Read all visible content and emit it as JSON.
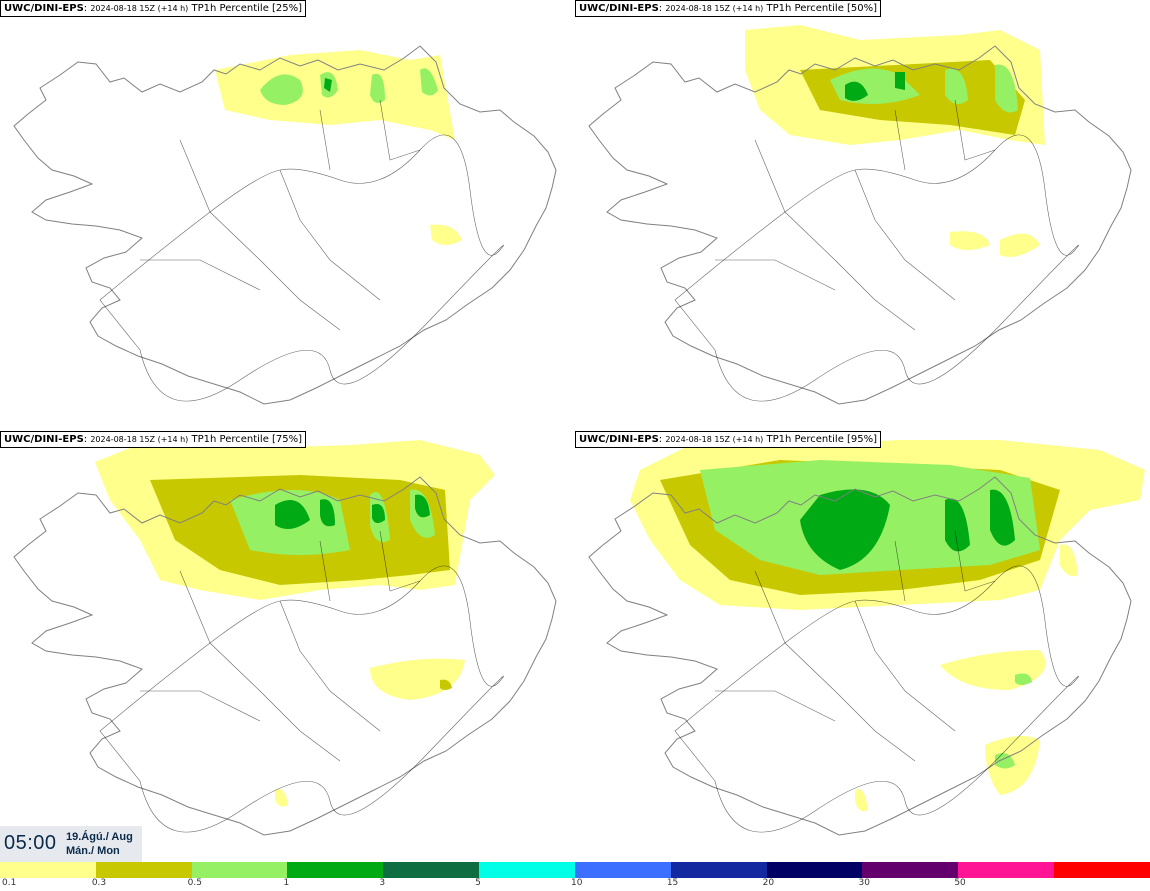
{
  "map": {
    "panels": [
      {
        "model": "UWC/DINI-EPS",
        "run": "2024-08-18 15Z (+14 h)",
        "product": "TP1h Percentile [25%]",
        "percentile": 25
      },
      {
        "model": "UWC/DINI-EPS",
        "run": "2024-08-18 15Z (+14 h)",
        "product": "TP1h Percentile [50%]",
        "percentile": 50
      },
      {
        "model": "UWC/DINI-EPS",
        "run": "2024-08-18 15Z (+14 h)",
        "product": "TP1h Percentile [75%]",
        "percentile": 75
      },
      {
        "model": "UWC/DINI-EPS",
        "run": "2024-08-18 15Z (+14 h)",
        "product": "TP1h Percentile [95%]",
        "percentile": 95
      }
    ],
    "valid_time": {
      "time": "05:00",
      "date_line1": "19.Ágú./ Aug",
      "date_line2": "Mán./ Mon"
    },
    "legend": {
      "colors": [
        "#ffff8c",
        "#c8c800",
        "#96f064",
        "#00aa14",
        "#0f6e41",
        "#00ffe6",
        "#3c6eff",
        "#1428a0",
        "#000064",
        "#64006e",
        "#ff1496",
        "#ff0000"
      ],
      "labels": [
        "0.1",
        "0.3",
        "0.5",
        "1",
        "3",
        "5",
        "10",
        "15",
        "20",
        "30",
        "50"
      ]
    },
    "coastline_color": "#808080",
    "road_color": "#000000"
  }
}
